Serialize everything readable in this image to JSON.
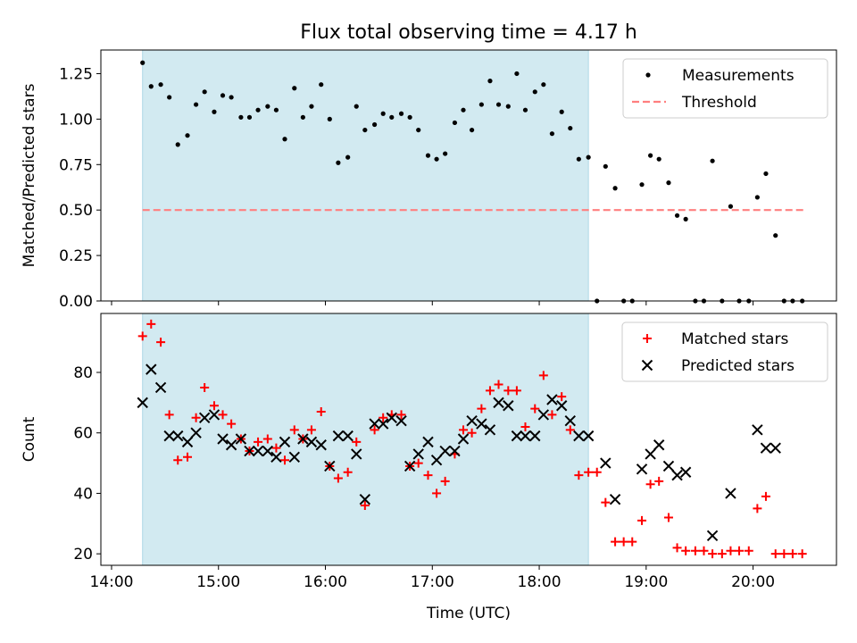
{
  "title": "Flux total observing time = 4.17 h",
  "xlabel": "Time (UTC)",
  "x_ticks": [
    {
      "t": 14.0,
      "label": "14:00"
    },
    {
      "t": 15.0,
      "label": "15:00"
    },
    {
      "t": 16.0,
      "label": "16:00"
    },
    {
      "t": 17.0,
      "label": "17:00"
    },
    {
      "t": 18.0,
      "label": "18:00"
    },
    {
      "t": 19.0,
      "label": "19:00"
    },
    {
      "t": 20.0,
      "label": "20:00"
    }
  ],
  "colors": {
    "shade": "#add8e6",
    "matched": "#ff0000",
    "predicted": "#000000",
    "threshold": "#ff7f7f"
  },
  "chart_data": [
    {
      "type": "scatter",
      "title": "Flux total observing time = 4.17 h",
      "ylabel": "Matched/Predicted stars",
      "xlabel": "",
      "xlim": [
        13.9,
        20.78
      ],
      "ylim": [
        0,
        1.38
      ],
      "y_ticks": [
        {
          "v": 0.0,
          "label": "0.00"
        },
        {
          "v": 0.25,
          "label": "0.25"
        },
        {
          "v": 0.5,
          "label": "0.50"
        },
        {
          "v": 0.75,
          "label": "0.75"
        },
        {
          "v": 1.0,
          "label": "1.00"
        },
        {
          "v": 1.25,
          "label": "1.25"
        }
      ],
      "shaded_span": [
        14.29,
        18.46
      ],
      "threshold": 0.5,
      "threshold_range": [
        14.29,
        20.5
      ],
      "legend": {
        "location": "upper right",
        "entries": [
          "Measurements",
          "Threshold"
        ]
      },
      "series": [
        {
          "name": "Measurements",
          "points": [
            [
              14.29,
              1.31
            ],
            [
              14.37,
              1.18
            ],
            [
              14.46,
              1.19
            ],
            [
              14.54,
              1.12
            ],
            [
              14.62,
              0.86
            ],
            [
              14.71,
              0.91
            ],
            [
              14.79,
              1.08
            ],
            [
              14.87,
              1.15
            ],
            [
              14.96,
              1.04
            ],
            [
              15.04,
              1.13
            ],
            [
              15.12,
              1.12
            ],
            [
              15.21,
              1.01
            ],
            [
              15.29,
              1.01
            ],
            [
              15.37,
              1.05
            ],
            [
              15.46,
              1.07
            ],
            [
              15.54,
              1.05
            ],
            [
              15.62,
              0.89
            ],
            [
              15.71,
              1.17
            ],
            [
              15.79,
              1.01
            ],
            [
              15.87,
              1.07
            ],
            [
              15.96,
              1.19
            ],
            [
              16.04,
              1.0
            ],
            [
              16.12,
              0.76
            ],
            [
              16.21,
              0.79
            ],
            [
              16.29,
              1.07
            ],
            [
              16.37,
              0.94
            ],
            [
              16.46,
              0.97
            ],
            [
              16.54,
              1.03
            ],
            [
              16.62,
              1.01
            ],
            [
              16.71,
              1.03
            ],
            [
              16.79,
              1.01
            ],
            [
              16.87,
              0.94
            ],
            [
              16.96,
              0.8
            ],
            [
              17.04,
              0.78
            ],
            [
              17.12,
              0.81
            ],
            [
              17.21,
              0.98
            ],
            [
              17.29,
              1.05
            ],
            [
              17.37,
              0.94
            ],
            [
              17.46,
              1.08
            ],
            [
              17.54,
              1.21
            ],
            [
              17.62,
              1.08
            ],
            [
              17.71,
              1.07
            ],
            [
              17.79,
              1.25
            ],
            [
              17.87,
              1.05
            ],
            [
              17.96,
              1.15
            ],
            [
              18.04,
              1.19
            ],
            [
              18.12,
              0.92
            ],
            [
              18.21,
              1.04
            ],
            [
              18.29,
              0.95
            ],
            [
              18.37,
              0.78
            ],
            [
              18.46,
              0.79
            ],
            [
              18.54,
              0.0
            ],
            [
              18.62,
              0.74
            ],
            [
              18.71,
              0.62
            ],
            [
              18.79,
              0.0
            ],
            [
              18.87,
              0.0
            ],
            [
              18.96,
              0.64
            ],
            [
              19.04,
              0.8
            ],
            [
              19.12,
              0.78
            ],
            [
              19.21,
              0.65
            ],
            [
              19.29,
              0.47
            ],
            [
              19.37,
              0.45
            ],
            [
              19.46,
              0.0
            ],
            [
              19.54,
              0.0
            ],
            [
              19.62,
              0.77
            ],
            [
              19.71,
              0.0
            ],
            [
              19.79,
              0.52
            ],
            [
              19.87,
              0.0
            ],
            [
              19.96,
              0.0
            ],
            [
              20.04,
              0.57
            ],
            [
              20.12,
              0.7
            ],
            [
              20.21,
              0.36
            ],
            [
              20.29,
              0.0
            ],
            [
              20.37,
              0.0
            ],
            [
              20.46,
              0.0
            ]
          ]
        }
      ]
    },
    {
      "type": "scatter",
      "title": "",
      "ylabel": "Count",
      "xlabel": "Time (UTC)",
      "xlim": [
        13.9,
        20.78
      ],
      "ylim": [
        16.2,
        99.5
      ],
      "y_ticks": [
        {
          "v": 20,
          "label": "20"
        },
        {
          "v": 40,
          "label": "40"
        },
        {
          "v": 60,
          "label": "60"
        },
        {
          "v": 80,
          "label": "80"
        }
      ],
      "shaded_span": [
        14.29,
        18.46
      ],
      "legend": {
        "location": "upper right",
        "entries": [
          "Matched stars",
          "Predicted stars"
        ]
      },
      "series": [
        {
          "name": "Matched stars",
          "marker": "plus",
          "points": [
            [
              14.29,
              92
            ],
            [
              14.37,
              96
            ],
            [
              14.46,
              90
            ],
            [
              14.54,
              66
            ],
            [
              14.62,
              51
            ],
            [
              14.71,
              52
            ],
            [
              14.79,
              65
            ],
            [
              14.87,
              75
            ],
            [
              14.96,
              69
            ],
            [
              15.04,
              66
            ],
            [
              15.12,
              63
            ],
            [
              15.21,
              58
            ],
            [
              15.29,
              54
            ],
            [
              15.37,
              57
            ],
            [
              15.46,
              58
            ],
            [
              15.54,
              55
            ],
            [
              15.62,
              51
            ],
            [
              15.71,
              61
            ],
            [
              15.79,
              58
            ],
            [
              15.87,
              61
            ],
            [
              15.96,
              67
            ],
            [
              16.04,
              49
            ],
            [
              16.12,
              45
            ],
            [
              16.21,
              47
            ],
            [
              16.29,
              57
            ],
            [
              16.37,
              36
            ],
            [
              16.46,
              61
            ],
            [
              16.54,
              65
            ],
            [
              16.62,
              66
            ],
            [
              16.71,
              66
            ],
            [
              16.79,
              49
            ],
            [
              16.87,
              50
            ],
            [
              16.96,
              46
            ],
            [
              17.04,
              40
            ],
            [
              17.12,
              44
            ],
            [
              17.21,
              53
            ],
            [
              17.29,
              61
            ],
            [
              17.37,
              60
            ],
            [
              17.46,
              68
            ],
            [
              17.54,
              74
            ],
            [
              17.62,
              76
            ],
            [
              17.71,
              74
            ],
            [
              17.79,
              74
            ],
            [
              17.87,
              62
            ],
            [
              17.96,
              68
            ],
            [
              18.04,
              79
            ],
            [
              18.12,
              66
            ],
            [
              18.21,
              72
            ],
            [
              18.29,
              61
            ],
            [
              18.37,
              46
            ],
            [
              18.46,
              47
            ],
            [
              18.54,
              47
            ],
            [
              18.62,
              37
            ],
            [
              18.71,
              24
            ],
            [
              18.79,
              24
            ],
            [
              18.87,
              24
            ],
            [
              18.96,
              31
            ],
            [
              19.04,
              43
            ],
            [
              19.12,
              44
            ],
            [
              19.21,
              32
            ],
            [
              19.29,
              22
            ],
            [
              19.37,
              21
            ],
            [
              19.46,
              21
            ],
            [
              19.54,
              21
            ],
            [
              19.62,
              20
            ],
            [
              19.71,
              20
            ],
            [
              19.79,
              21
            ],
            [
              19.87,
              21
            ],
            [
              19.96,
              21
            ],
            [
              20.04,
              35
            ],
            [
              20.12,
              39
            ],
            [
              20.21,
              20
            ],
            [
              20.29,
              20
            ],
            [
              20.37,
              20
            ],
            [
              20.46,
              20
            ]
          ]
        },
        {
          "name": "Predicted stars",
          "marker": "x",
          "points": [
            [
              14.29,
              70
            ],
            [
              14.37,
              81
            ],
            [
              14.46,
              75
            ],
            [
              14.54,
              59
            ],
            [
              14.62,
              59
            ],
            [
              14.71,
              57
            ],
            [
              14.79,
              60
            ],
            [
              14.87,
              65
            ],
            [
              14.96,
              66
            ],
            [
              15.04,
              58
            ],
            [
              15.12,
              56
            ],
            [
              15.21,
              58
            ],
            [
              15.29,
              54
            ],
            [
              15.37,
              54
            ],
            [
              15.46,
              54
            ],
            [
              15.54,
              52
            ],
            [
              15.62,
              57
            ],
            [
              15.71,
              52
            ],
            [
              15.79,
              58
            ],
            [
              15.87,
              57
            ],
            [
              15.96,
              56
            ],
            [
              16.04,
              49
            ],
            [
              16.12,
              59
            ],
            [
              16.21,
              59
            ],
            [
              16.29,
              53
            ],
            [
              16.37,
              38
            ],
            [
              16.46,
              63
            ],
            [
              16.54,
              63
            ],
            [
              16.62,
              65
            ],
            [
              16.71,
              64
            ],
            [
              16.79,
              49
            ],
            [
              16.87,
              53
            ],
            [
              16.96,
              57
            ],
            [
              17.04,
              51
            ],
            [
              17.12,
              54
            ],
            [
              17.21,
              54
            ],
            [
              17.29,
              58
            ],
            [
              17.37,
              64
            ],
            [
              17.46,
              63
            ],
            [
              17.54,
              61
            ],
            [
              17.62,
              70
            ],
            [
              17.71,
              69
            ],
            [
              17.79,
              59
            ],
            [
              17.87,
              59
            ],
            [
              17.96,
              59
            ],
            [
              18.04,
              66
            ],
            [
              18.12,
              71
            ],
            [
              18.21,
              69
            ],
            [
              18.29,
              64
            ],
            [
              18.37,
              59
            ],
            [
              18.46,
              59
            ],
            [
              18.62,
              50
            ],
            [
              18.71,
              38
            ],
            [
              18.96,
              48
            ],
            [
              19.04,
              53
            ],
            [
              19.12,
              56
            ],
            [
              19.21,
              49
            ],
            [
              19.29,
              46
            ],
            [
              19.37,
              47
            ],
            [
              19.62,
              26
            ],
            [
              19.79,
              40
            ],
            [
              20.04,
              61
            ],
            [
              20.12,
              55
            ],
            [
              20.21,
              55
            ]
          ]
        }
      ]
    }
  ]
}
